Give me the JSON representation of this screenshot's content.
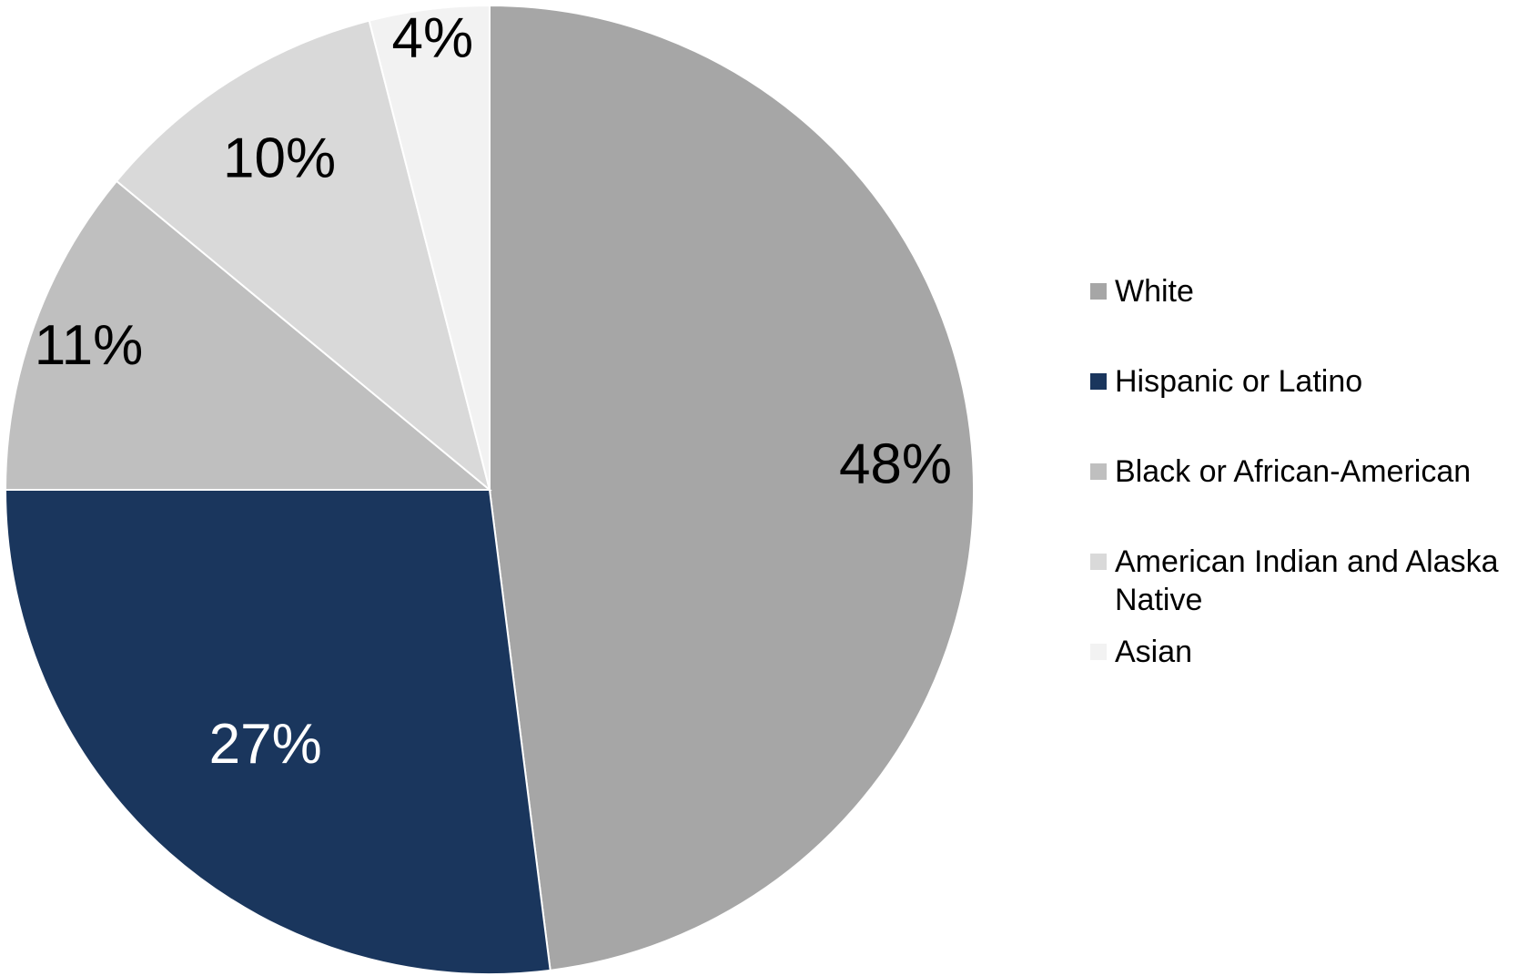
{
  "chart_data": {
    "type": "pie",
    "start_angle_deg": 0,
    "direction": "clockwise",
    "legend_position": "right",
    "slices": [
      {
        "label": "White",
        "value": 48,
        "display": "48%",
        "color": "#a6a6a6",
        "label_color": "#000000"
      },
      {
        "label": "Hispanic or Latino",
        "value": 27,
        "display": "27%",
        "color": "#1a365d",
        "label_color": "#ffffff"
      },
      {
        "label": "Black or African-American",
        "value": 11,
        "display": "11%",
        "color": "#bfbfbf",
        "label_color": "#000000"
      },
      {
        "label": "American Indian and Alaska Native",
        "legend_lines": [
          "American Indian and Alaska",
          "Native"
        ],
        "value": 10,
        "display": "10%",
        "color": "#d9d9d9",
        "label_color": "#000000"
      },
      {
        "label": "Asian",
        "value": 4,
        "display": "4%",
        "color": "#f2f2f2",
        "label_color": "#000000"
      }
    ]
  }
}
